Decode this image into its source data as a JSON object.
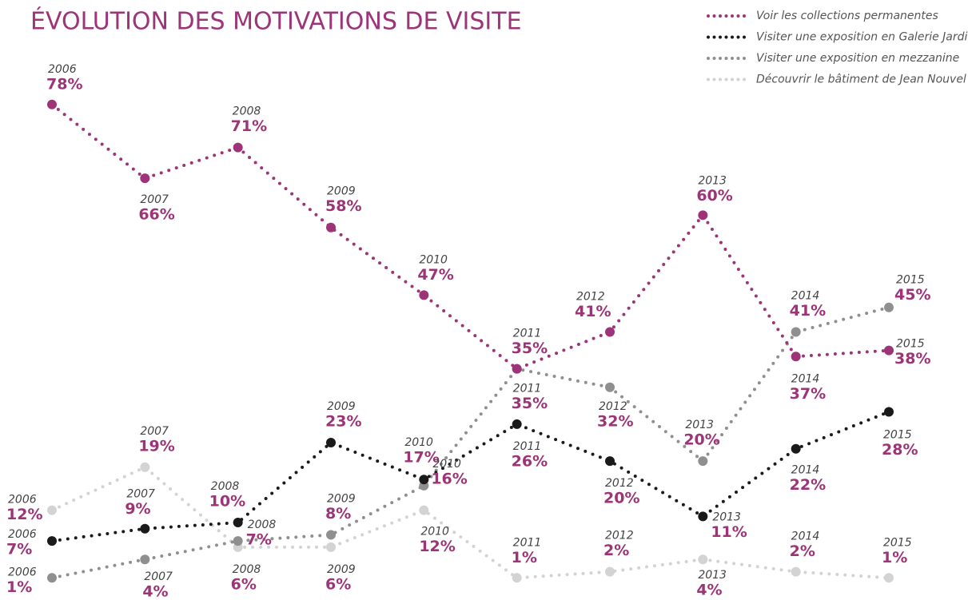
{
  "chart_data": {
    "type": "line",
    "title": "ÉVOLUTION DES MOTIVATIONS DE VISITE",
    "categories": [
      "2006",
      "2007",
      "2008",
      "2009",
      "2010",
      "2011",
      "2012",
      "2013",
      "2014",
      "2015"
    ],
    "ylim": [
      0,
      95
    ],
    "legend": "top-right",
    "series": [
      {
        "name": "Voir les collections permanentes",
        "color": "#9c3477",
        "values": [
          78,
          66,
          71,
          58,
          47,
          35,
          41,
          60,
          37,
          38
        ],
        "value_labels": [
          "78%",
          "66%",
          "71%",
          "58%",
          "47%",
          "35%",
          "41%",
          "60%",
          "37%",
          "38%"
        ]
      },
      {
        "name": "Visiter une exposition en Galerie Jardin",
        "color": "#1a1a1a",
        "values": [
          7,
          9,
          10,
          23,
          17,
          26,
          20,
          11,
          22,
          28
        ],
        "value_labels": [
          "7%",
          "9%",
          "10%",
          "23%",
          "17%",
          "26%",
          "20%",
          "11%",
          "22%",
          "28%"
        ]
      },
      {
        "name": "Visiter une exposition en mezzanine",
        "color": "#8f8f8f",
        "values": [
          1,
          4,
          7,
          8,
          16,
          35,
          32,
          20,
          41,
          45
        ],
        "value_labels": [
          "1%",
          "4%",
          "7%",
          "8%",
          "16%",
          "35%",
          "32%",
          "20%",
          "41%",
          "45%"
        ]
      },
      {
        "name": "Découvrir le bâtiment de Jean Nouvel",
        "color": "#d3d3d3",
        "values": [
          12,
          19,
          6,
          6,
          12,
          1,
          2,
          4,
          2,
          1
        ],
        "value_labels": [
          "12%",
          "19%",
          "6%",
          "6%",
          "12%",
          "1%",
          "2%",
          "4%",
          "2%",
          "1%"
        ]
      }
    ]
  }
}
